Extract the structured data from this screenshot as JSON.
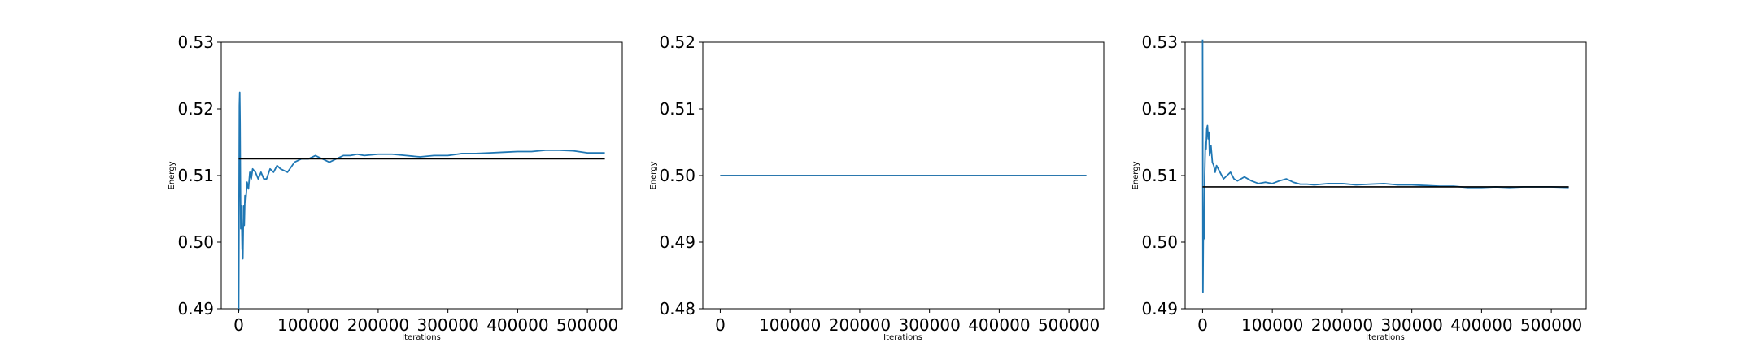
{
  "chart_data": [
    {
      "type": "line",
      "xlabel": "Iterations",
      "ylabel": "Energy",
      "xlim": [
        -25000,
        550000
      ],
      "ylim": [
        0.49,
        0.53
      ],
      "xticks": [
        0,
        100000,
        200000,
        300000,
        400000,
        500000
      ],
      "yticks": [
        0.49,
        0.5,
        0.51,
        0.52,
        0.53
      ],
      "grid": false,
      "series": [
        {
          "color": "#1f77b4",
          "x": [
            0,
            1000,
            1500,
            2000,
            2500,
            3000,
            4000,
            5000,
            6000,
            7000,
            8000,
            9000,
            10000,
            12000,
            14000,
            16000,
            18000,
            20000,
            24000,
            28000,
            32000,
            36000,
            40000,
            45000,
            50000,
            55000,
            60000,
            70000,
            80000,
            90000,
            100000,
            110000,
            120000,
            130000,
            140000,
            150000,
            160000,
            170000,
            180000,
            200000,
            220000,
            240000,
            260000,
            280000,
            300000,
            320000,
            340000,
            360000,
            380000,
            400000,
            420000,
            440000,
            460000,
            480000,
            500000,
            525000
          ],
          "values": [
            0.488,
            0.5205,
            0.5225,
            0.518,
            0.509,
            0.502,
            0.5055,
            0.499,
            0.4975,
            0.5055,
            0.5025,
            0.507,
            0.506,
            0.509,
            0.508,
            0.5105,
            0.5095,
            0.511,
            0.5105,
            0.5095,
            0.5105,
            0.5095,
            0.5095,
            0.511,
            0.5105,
            0.5115,
            0.511,
            0.5105,
            0.512,
            0.5125,
            0.5125,
            0.513,
            0.5125,
            0.512,
            0.5125,
            0.513,
            0.513,
            0.5132,
            0.513,
            0.5132,
            0.5132,
            0.513,
            0.5128,
            0.513,
            0.513,
            0.5133,
            0.5133,
            0.5134,
            0.5135,
            0.5136,
            0.5136,
            0.5138,
            0.5138,
            0.5137,
            0.5134,
            0.5134
          ]
        },
        {
          "color": "#000000",
          "x": [
            0,
            525000
          ],
          "values": [
            0.5125,
            0.5125
          ]
        }
      ]
    },
    {
      "type": "line",
      "xlabel": "Iterations",
      "ylabel": "Energy",
      "xlim": [
        -25000,
        550000
      ],
      "ylim": [
        0.48,
        0.52
      ],
      "xticks": [
        0,
        100000,
        200000,
        300000,
        400000,
        500000
      ],
      "yticks": [
        0.48,
        0.49,
        0.5,
        0.51,
        0.52
      ],
      "grid": false,
      "series": [
        {
          "color": "#000000",
          "x": [
            0,
            525000
          ],
          "values": [
            0.5,
            0.5
          ]
        },
        {
          "color": "#1f77b4",
          "x": [
            0,
            525000
          ],
          "values": [
            0.5,
            0.5
          ]
        }
      ]
    },
    {
      "type": "line",
      "xlabel": "Iterations",
      "ylabel": "Energy",
      "xlim": [
        -25000,
        550000
      ],
      "ylim": [
        0.49,
        0.53
      ],
      "xticks": [
        0,
        100000,
        200000,
        300000,
        400000,
        500000
      ],
      "yticks": [
        0.49,
        0.5,
        0.51,
        0.52,
        0.53
      ],
      "grid": false,
      "series": [
        {
          "color": "#1f77b4",
          "x": [
            0,
            500,
            1000,
            1500,
            2000,
            3000,
            4000,
            5000,
            6000,
            7000,
            8000,
            9000,
            10000,
            12000,
            14000,
            16000,
            18000,
            20000,
            25000,
            30000,
            35000,
            40000,
            45000,
            50000,
            55000,
            60000,
            70000,
            80000,
            90000,
            100000,
            110000,
            120000,
            130000,
            140000,
            150000,
            160000,
            180000,
            200000,
            220000,
            240000,
            260000,
            280000,
            300000,
            320000,
            340000,
            360000,
            380000,
            400000,
            420000,
            440000,
            460000,
            480000,
            500000,
            525000
          ],
          "values": [
            0.531,
            0.4925,
            0.5,
            0.502,
            0.5005,
            0.51,
            0.515,
            0.514,
            0.517,
            0.5175,
            0.5155,
            0.5165,
            0.513,
            0.5145,
            0.512,
            0.5115,
            0.5105,
            0.5115,
            0.5105,
            0.5095,
            0.51,
            0.5105,
            0.5095,
            0.5092,
            0.5095,
            0.5098,
            0.5092,
            0.5088,
            0.509,
            0.5088,
            0.5092,
            0.5095,
            0.509,
            0.5087,
            0.5087,
            0.5086,
            0.5088,
            0.5088,
            0.5086,
            0.5087,
            0.5088,
            0.5086,
            0.5086,
            0.5085,
            0.5084,
            0.5084,
            0.5082,
            0.5082,
            0.5083,
            0.5082,
            0.5083,
            0.5083,
            0.5083,
            0.5082
          ]
        },
        {
          "color": "#000000",
          "x": [
            0,
            525000
          ],
          "values": [
            0.5083,
            0.5083
          ]
        }
      ]
    }
  ]
}
